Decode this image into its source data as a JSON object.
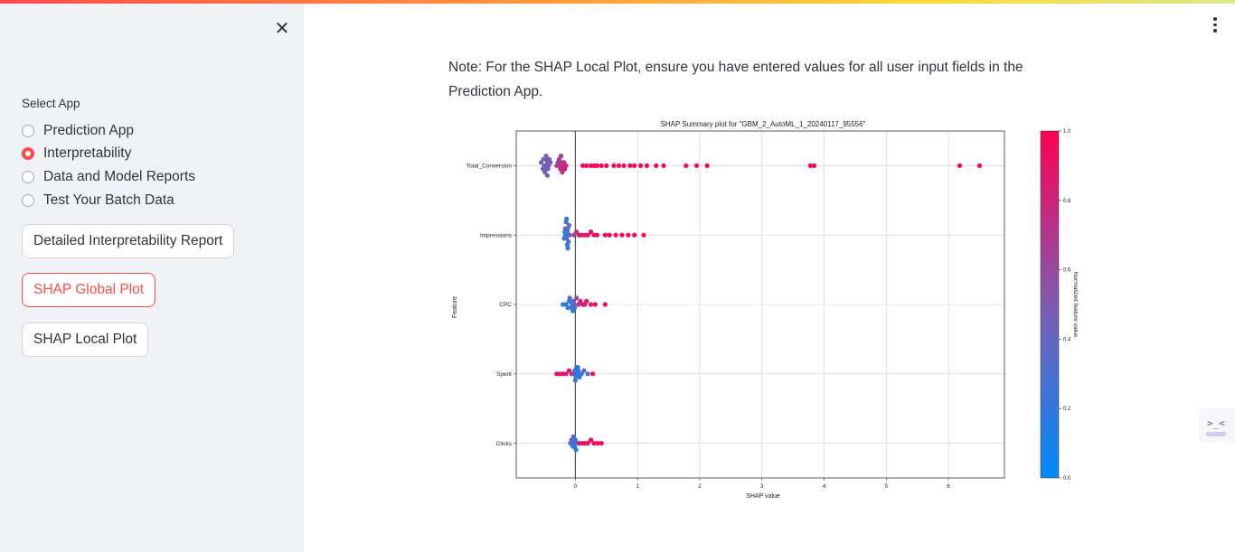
{
  "sidebar": {
    "select_label": "Select App",
    "radios": [
      {
        "label": "Prediction App",
        "selected": false
      },
      {
        "label": "Interpretability",
        "selected": true
      },
      {
        "label": "Data and Model Reports",
        "selected": false
      },
      {
        "label": "Test Your Batch Data",
        "selected": false
      }
    ],
    "buttons": {
      "detailed_report": "Detailed Interpretability Report",
      "shap_global": "SHAP Global Plot",
      "shap_local": "SHAP Local Plot"
    },
    "close_icon": "close-icon"
  },
  "main": {
    "note": "Note: For the SHAP Local Plot, ensure you have entered values for all user input fields in the Prediction App.",
    "menu_icon": "kebab-menu-icon",
    "side_tab_glyph": ">_<"
  },
  "colors": {
    "accent": "#ff4b4b",
    "low": "#008bfb",
    "high": "#ff0052"
  },
  "chart_data": {
    "type": "scatter",
    "title": "SHAP Summary plot for \"GBM_2_AutoML_1_20240117_95556\"",
    "xlabel": "SHAP value",
    "ylabel": "Feature",
    "colorbar_label": "Normalized feature value",
    "xlim": [
      -0.95,
      6.9
    ],
    "x_ticks": [
      0,
      1,
      2,
      3,
      4,
      5,
      6
    ],
    "colorbar_ticks": [
      "0.0",
      "0.2",
      "0.4",
      "0.6",
      "0.8",
      "1.0"
    ],
    "grid": true,
    "features": [
      {
        "name": "Total_Conversion",
        "points": [
          {
            "shap": -0.47,
            "value": 0.45
          },
          {
            "shap": -0.45,
            "value": 0.5
          },
          {
            "shap": -0.43,
            "value": 0.4
          },
          {
            "shap": -0.5,
            "value": 0.48
          },
          {
            "shap": -0.55,
            "value": 0.42
          },
          {
            "shap": -0.4,
            "value": 0.5
          },
          {
            "shap": -0.48,
            "value": 0.38
          },
          {
            "shap": -0.52,
            "value": 0.46
          },
          {
            "shap": -0.44,
            "value": 0.44
          },
          {
            "shap": -0.46,
            "value": 0.52
          },
          {
            "shap": -0.49,
            "value": 0.4
          },
          {
            "shap": -0.42,
            "value": 0.47
          },
          {
            "shap": -0.51,
            "value": 0.43
          },
          {
            "shap": -0.47,
            "value": 0.49
          },
          {
            "shap": -0.45,
            "value": 0.41
          },
          {
            "shap": -0.3,
            "value": 0.62
          },
          {
            "shap": -0.25,
            "value": 0.68
          },
          {
            "shap": -0.22,
            "value": 0.7
          },
          {
            "shap": -0.2,
            "value": 0.75
          },
          {
            "shap": -0.18,
            "value": 0.72
          },
          {
            "shap": -0.28,
            "value": 0.66
          },
          {
            "shap": -0.24,
            "value": 0.8
          },
          {
            "shap": -0.15,
            "value": 0.78
          },
          {
            "shap": -0.26,
            "value": 0.64
          },
          {
            "shap": -0.21,
            "value": 0.74
          },
          {
            "shap": -0.17,
            "value": 0.82
          },
          {
            "shap": -0.23,
            "value": 0.7
          },
          {
            "shap": 0.12,
            "value": 0.95
          },
          {
            "shap": 0.18,
            "value": 0.93
          },
          {
            "shap": 0.25,
            "value": 0.96
          },
          {
            "shap": 0.3,
            "value": 0.94
          },
          {
            "shap": 0.35,
            "value": 0.97
          },
          {
            "shap": 0.42,
            "value": 0.95
          },
          {
            "shap": 0.5,
            "value": 0.96
          },
          {
            "shap": 0.62,
            "value": 0.97
          },
          {
            "shap": 0.7,
            "value": 0.95
          },
          {
            "shap": 0.78,
            "value": 0.96
          },
          {
            "shap": 0.88,
            "value": 0.97
          },
          {
            "shap": 0.95,
            "value": 0.98
          },
          {
            "shap": 1.05,
            "value": 0.96
          },
          {
            "shap": 1.15,
            "value": 0.97
          },
          {
            "shap": 1.3,
            "value": 0.98
          },
          {
            "shap": 1.42,
            "value": 0.97
          },
          {
            "shap": 1.78,
            "value": 0.98
          },
          {
            "shap": 1.95,
            "value": 0.98
          },
          {
            "shap": 2.12,
            "value": 0.99
          },
          {
            "shap": 3.78,
            "value": 0.99
          },
          {
            "shap": 3.84,
            "value": 0.99
          },
          {
            "shap": 6.18,
            "value": 1.0
          },
          {
            "shap": 6.5,
            "value": 1.0
          }
        ]
      },
      {
        "name": "Impressions",
        "points": [
          {
            "shap": -0.15,
            "value": 0.2
          },
          {
            "shap": -0.13,
            "value": 0.25
          },
          {
            "shap": -0.16,
            "value": 0.15
          },
          {
            "shap": -0.14,
            "value": 0.3
          },
          {
            "shap": -0.12,
            "value": 0.22
          },
          {
            "shap": -0.17,
            "value": 0.18
          },
          {
            "shap": -0.11,
            "value": 0.35
          },
          {
            "shap": -0.18,
            "value": 0.28
          },
          {
            "shap": -0.1,
            "value": 0.4
          },
          {
            "shap": -0.13,
            "value": 0.12
          },
          {
            "shap": -0.15,
            "value": 0.32
          },
          {
            "shap": -0.12,
            "value": 0.26
          },
          {
            "shap": -0.16,
            "value": 0.38
          },
          {
            "shap": -0.14,
            "value": 0.2
          },
          {
            "shap": -0.09,
            "value": 0.45
          },
          {
            "shap": -0.02,
            "value": 0.7
          },
          {
            "shap": 0.02,
            "value": 0.75
          },
          {
            "shap": 0.06,
            "value": 0.8
          },
          {
            "shap": 0.1,
            "value": 0.85
          },
          {
            "shap": 0.15,
            "value": 0.88
          },
          {
            "shap": 0.2,
            "value": 0.9
          },
          {
            "shap": 0.25,
            "value": 0.92
          },
          {
            "shap": 0.3,
            "value": 0.93
          },
          {
            "shap": 0.35,
            "value": 0.94
          },
          {
            "shap": 0.48,
            "value": 0.95
          },
          {
            "shap": 0.55,
            "value": 0.96
          },
          {
            "shap": 0.65,
            "value": 0.96
          },
          {
            "shap": 0.75,
            "value": 0.97
          },
          {
            "shap": 0.85,
            "value": 0.97
          },
          {
            "shap": 0.95,
            "value": 0.98
          },
          {
            "shap": 1.1,
            "value": 0.98
          }
        ]
      },
      {
        "name": "CPC",
        "points": [
          {
            "shap": -0.2,
            "value": 0.15
          },
          {
            "shap": -0.15,
            "value": 0.1
          },
          {
            "shap": -0.1,
            "value": 0.2
          },
          {
            "shap": -0.05,
            "value": 0.12
          },
          {
            "shap": -0.08,
            "value": 0.25
          },
          {
            "shap": -0.02,
            "value": 0.3
          },
          {
            "shap": -0.12,
            "value": 0.18
          },
          {
            "shap": -0.06,
            "value": 0.22
          },
          {
            "shap": -0.03,
            "value": 0.35
          },
          {
            "shap": -0.01,
            "value": 0.4
          },
          {
            "shap": -0.09,
            "value": 0.28
          },
          {
            "shap": -0.04,
            "value": 0.15
          },
          {
            "shap": 0.02,
            "value": 0.6
          },
          {
            "shap": 0.05,
            "value": 0.7
          },
          {
            "shap": 0.08,
            "value": 0.8
          },
          {
            "shap": 0.12,
            "value": 0.85
          },
          {
            "shap": 0.15,
            "value": 0.9
          },
          {
            "shap": 0.18,
            "value": 0.88
          },
          {
            "shap": 0.25,
            "value": 0.92
          },
          {
            "shap": 0.32,
            "value": 0.94
          },
          {
            "shap": 0.48,
            "value": 0.95
          }
        ]
      },
      {
        "name": "Spent",
        "points": [
          {
            "shap": -0.3,
            "value": 0.9
          },
          {
            "shap": -0.25,
            "value": 0.88
          },
          {
            "shap": -0.2,
            "value": 0.92
          },
          {
            "shap": -0.15,
            "value": 0.85
          },
          {
            "shap": -0.1,
            "value": 0.9
          },
          {
            "shap": -0.06,
            "value": 0.8
          },
          {
            "shap": -0.03,
            "value": 0.6
          },
          {
            "shap": -0.01,
            "value": 0.2
          },
          {
            "shap": 0.01,
            "value": 0.15
          },
          {
            "shap": 0.03,
            "value": 0.1
          },
          {
            "shap": 0.05,
            "value": 0.2
          },
          {
            "shap": 0.07,
            "value": 0.25
          },
          {
            "shap": 0.02,
            "value": 0.3
          },
          {
            "shap": 0.0,
            "value": 0.12
          },
          {
            "shap": 0.04,
            "value": 0.18
          },
          {
            "shap": 0.1,
            "value": 0.3
          },
          {
            "shap": 0.14,
            "value": 0.35
          },
          {
            "shap": 0.2,
            "value": 0.3
          },
          {
            "shap": 0.28,
            "value": 0.95
          }
        ]
      },
      {
        "name": "Clicks",
        "points": [
          {
            "shap": -0.08,
            "value": 0.3
          },
          {
            "shap": -0.06,
            "value": 0.5
          },
          {
            "shap": -0.04,
            "value": 0.35
          },
          {
            "shap": -0.02,
            "value": 0.2
          },
          {
            "shap": 0.0,
            "value": 0.1
          },
          {
            "shap": -0.01,
            "value": 0.15
          },
          {
            "shap": -0.03,
            "value": 0.4
          },
          {
            "shap": 0.01,
            "value": 0.12
          },
          {
            "shap": 0.05,
            "value": 0.8
          },
          {
            "shap": 0.1,
            "value": 0.9
          },
          {
            "shap": 0.15,
            "value": 0.92
          },
          {
            "shap": 0.2,
            "value": 0.94
          },
          {
            "shap": 0.25,
            "value": 0.95
          },
          {
            "shap": 0.3,
            "value": 0.96
          },
          {
            "shap": 0.36,
            "value": 0.97
          },
          {
            "shap": 0.42,
            "value": 0.98
          }
        ]
      }
    ]
  }
}
